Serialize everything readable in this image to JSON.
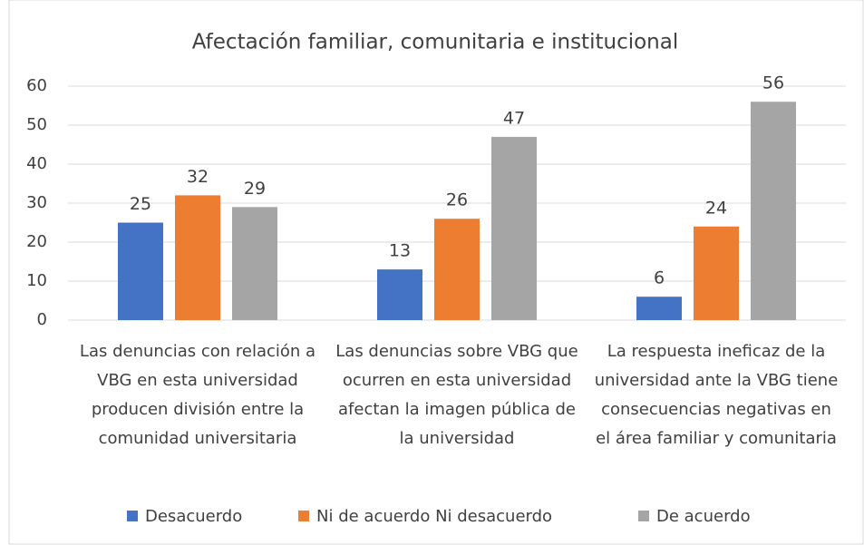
{
  "chart_data": {
    "type": "bar",
    "title": "Afectación familiar, comunitaria e institucional",
    "categories": [
      "Las denuncias con relación a VBG en esta universidad producen división entre la comunidad universitaria",
      "Las denuncias sobre VBG que ocurren en esta universidad afectan la imagen pública de la universidad",
      "La respuesta ineficaz de la universidad ante la VBG tiene consecuencias negativas en el área familiar y comunitaria"
    ],
    "series": [
      {
        "name": "Desacuerdo",
        "color": "#4472c4",
        "values": [
          25,
          13,
          6
        ]
      },
      {
        "name": "Ni de acuerdo Ni desacuerdo",
        "color": "#ed7d31",
        "values": [
          32,
          26,
          24
        ]
      },
      {
        "name": "De acuerdo",
        "color": "#a5a5a5",
        "values": [
          29,
          47,
          56
        ]
      }
    ],
    "ylim": [
      0,
      60
    ],
    "yticks": [
      0,
      10,
      20,
      30,
      40,
      50,
      60
    ],
    "grid": true,
    "legend": "bottom"
  }
}
